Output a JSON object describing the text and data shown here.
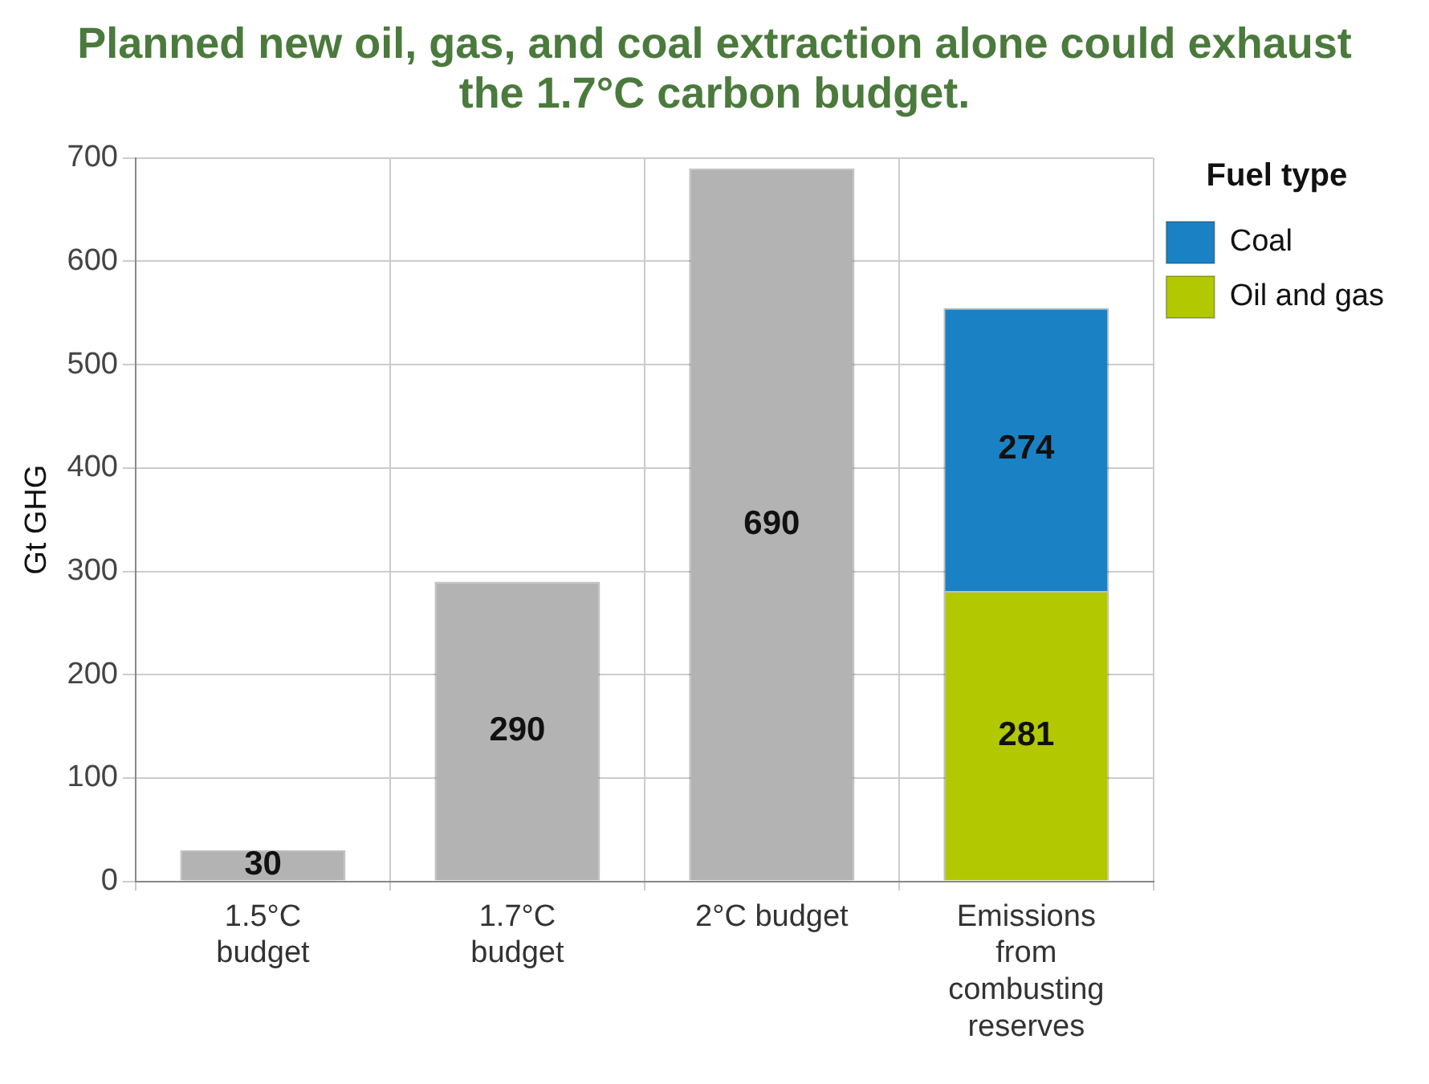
{
  "chart_data": {
    "type": "bar",
    "title": "Planned new oil, gas, and coal extraction alone could exhaust the 1.7°C carbon budget.",
    "ylabel": "Gt GHG",
    "legend_title": "Fuel type",
    "categories": [
      "1.5°C budget",
      "1.7°C budget",
      "2°C budget",
      "Emissions from combusting reserves"
    ],
    "series": [
      {
        "color": "#b3b3b3",
        "values": [
          30,
          290,
          690,
          null
        ]
      },
      {
        "name": "Oil and gas",
        "color": "#b2c800",
        "values": [
          null,
          null,
          null,
          281
        ]
      },
      {
        "name": "Coal",
        "color": "#1a82c4",
        "values": [
          null,
          null,
          null,
          274
        ]
      }
    ],
    "stacked": true,
    "ylim": [
      0,
      700
    ],
    "yticks": [
      0,
      100,
      200,
      300,
      400,
      500,
      600,
      700
    ],
    "grid": true,
    "legend": "right",
    "data_labels": true
  }
}
